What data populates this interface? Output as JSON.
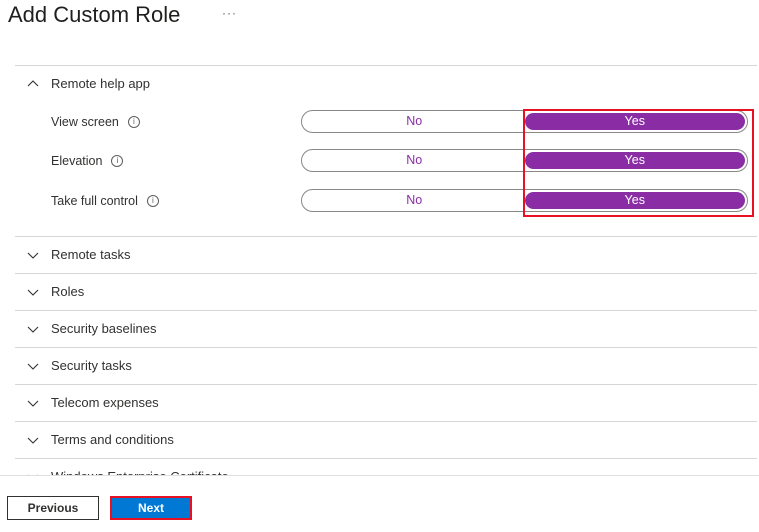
{
  "header": {
    "title": "Add Custom Role",
    "more": "···"
  },
  "expanded_section": {
    "label": "Remote help app",
    "permissions": [
      {
        "label": "View screen",
        "no": "No",
        "yes": "Yes",
        "selected": "Yes"
      },
      {
        "label": "Elevation",
        "no": "No",
        "yes": "Yes",
        "selected": "Yes"
      },
      {
        "label": "Take full control",
        "no": "No",
        "yes": "Yes",
        "selected": "Yes"
      }
    ]
  },
  "sections": [
    "Remote tasks",
    "Roles",
    "Security baselines",
    "Security tasks",
    "Telecom expenses",
    "Terms and conditions",
    "Windows Enterprise Certificate"
  ],
  "footer": {
    "previous": "Previous",
    "next": "Next"
  },
  "colors": {
    "accent": "#8a2da5",
    "primary": "#0078d4",
    "highlight": "#e81123"
  }
}
